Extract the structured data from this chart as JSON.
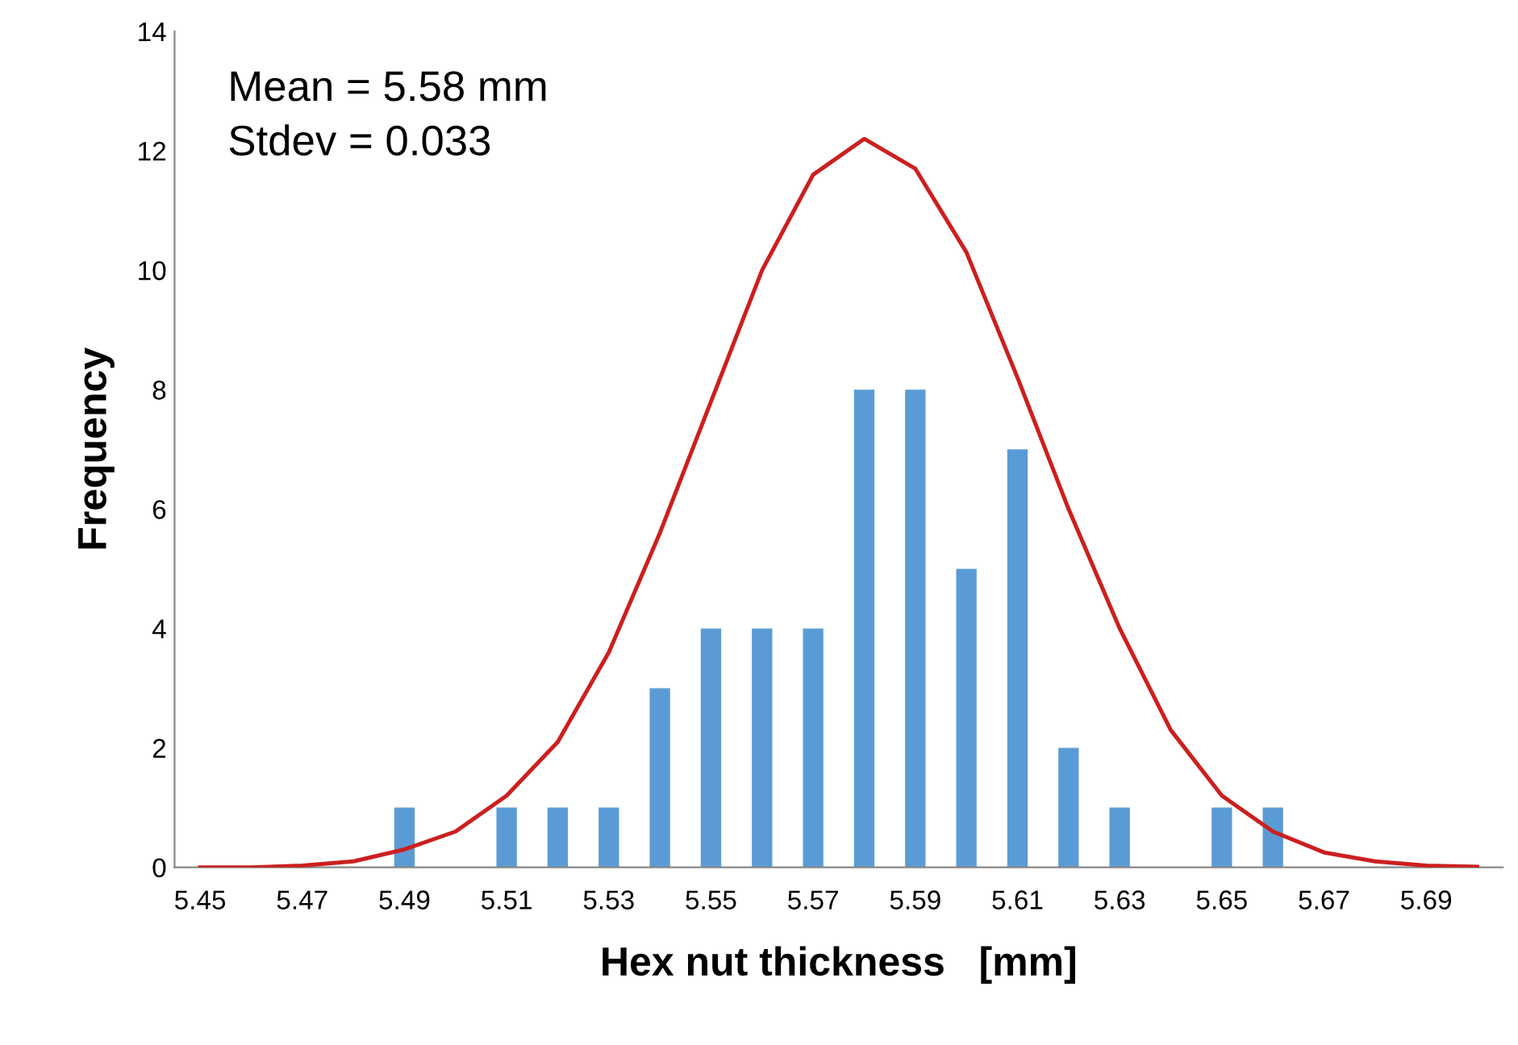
{
  "chart_data": {
    "type": "bar",
    "xlabel": "Hex nut thickness   [mm]",
    "ylabel": "Frequency",
    "categories": [
      "5.45",
      null,
      "5.47",
      null,
      "5.49",
      null,
      "5.51",
      null,
      "5.53",
      null,
      "5.55",
      null,
      "5.57",
      null,
      "5.59",
      null,
      "5.61",
      null,
      "5.63",
      null,
      "5.65",
      null,
      "5.67",
      null,
      "5.69",
      null
    ],
    "series": [
      {
        "color": "#5b9bd5",
        "values": [
          0,
          0,
          0,
          0,
          1,
          0,
          1,
          1,
          1,
          3,
          4,
          4,
          4,
          8,
          8,
          5,
          7,
          2,
          1,
          0,
          1,
          1,
          0,
          0,
          0,
          0
        ]
      },
      {
        "type": "line",
        "color": "#cc1f1f",
        "values": [
          0,
          0,
          0.03,
          0.1,
          0.3,
          0.6,
          1.2,
          2.1,
          3.6,
          5.6,
          7.8,
          10.0,
          11.6,
          12.2,
          11.7,
          10.3,
          8.2,
          6.0,
          4.0,
          2.3,
          1.2,
          0.6,
          0.25,
          0.1,
          0.03,
          0.01
        ]
      }
    ],
    "ylim": [
      0,
      14
    ],
    "yticks": [
      0,
      2,
      4,
      6,
      8,
      10,
      12,
      14
    ],
    "grid": false,
    "legend": false,
    "marker": "none",
    "line_style": "solid",
    "annotations": [
      "Mean = 5.58 mm",
      "Stdev = 0.033"
    ]
  }
}
